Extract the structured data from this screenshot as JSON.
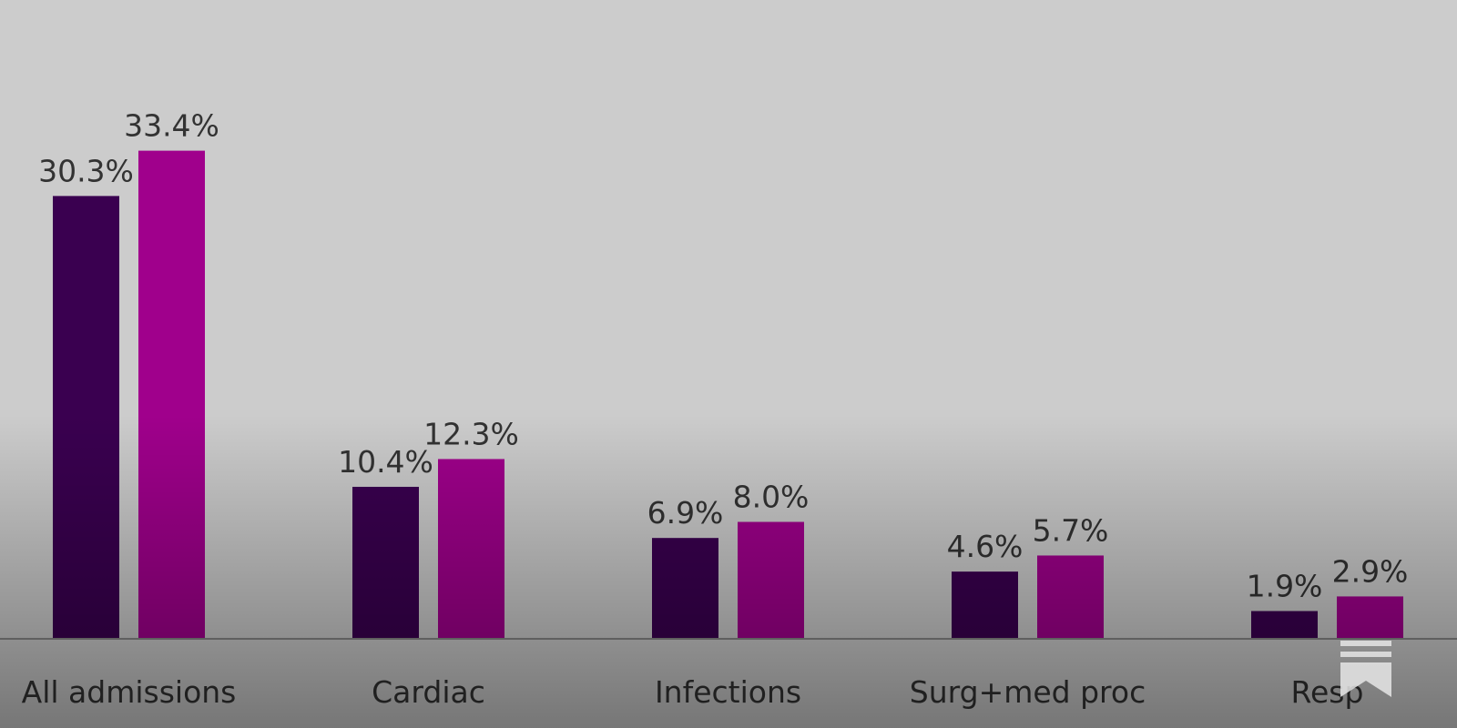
{
  "chart_data": {
    "type": "bar",
    "categories": [
      "All admissions",
      "Cardiac",
      "Infections",
      "Surg+med proc",
      "Resp"
    ],
    "series": [
      {
        "color": "#3a0050",
        "values": [
          30.3,
          10.4,
          6.9,
          4.6,
          1.9
        ],
        "value_labels": [
          "30.3%",
          "10.4%",
          "6.9%",
          "4.6%",
          "1.9%"
        ]
      },
      {
        "color": "#a0008c",
        "values": [
          33.4,
          12.3,
          8.0,
          5.7,
          2.9
        ],
        "value_labels": [
          "33.4%",
          "12.3%",
          "8.0%",
          "5.7%",
          "2.9%"
        ]
      }
    ]
  }
}
